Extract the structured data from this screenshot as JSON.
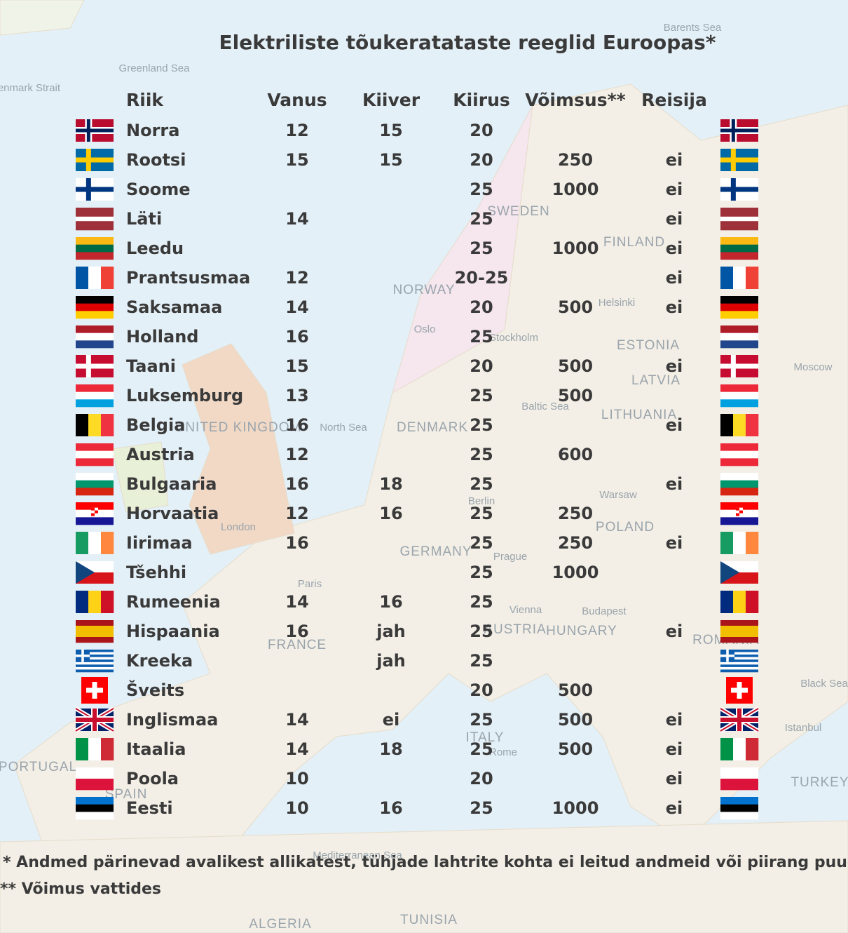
{
  "title": "Elektriliste tõukeratataste reeglid Euroopas*",
  "table": {
    "headers": [
      "Riik",
      "Vanus",
      "Kiiver",
      "Kiirus",
      "Võimsus**",
      "Reisija"
    ],
    "rows": [
      [
        "Norra",
        12,
        15,
        20,
        null,
        null
      ],
      [
        "Rootsi",
        15,
        15,
        20,
        250,
        "ei"
      ],
      [
        "Soome",
        null,
        null,
        25,
        1000,
        "ei"
      ],
      [
        "Läti",
        14,
        null,
        25,
        null,
        "ei"
      ],
      [
        "Leedu",
        null,
        null,
        25,
        1000,
        "ei"
      ],
      [
        "Prantsusmaa",
        12,
        null,
        "20-25",
        null,
        "ei"
      ],
      [
        "Saksamaa",
        14,
        null,
        20,
        500,
        "ei"
      ],
      [
        "Holland",
        16,
        null,
        25,
        null,
        null
      ],
      [
        "Taani",
        15,
        null,
        20,
        500,
        "ei"
      ],
      [
        "Luksemburg",
        13,
        null,
        25,
        500,
        null
      ],
      [
        "Belgia",
        16,
        null,
        25,
        null,
        "ei"
      ],
      [
        "Austria",
        12,
        null,
        25,
        600,
        null
      ],
      [
        "Bulgaaria",
        16,
        18,
        25,
        null,
        "ei"
      ],
      [
        "Horvaatia",
        12,
        16,
        25,
        250,
        null
      ],
      [
        "Iirimaa",
        16,
        null,
        25,
        250,
        "ei"
      ],
      [
        "Tšehhi",
        null,
        null,
        25,
        1000,
        null
      ],
      [
        "Rumeenia",
        14,
        16,
        25,
        null,
        null
      ],
      [
        "Hispaania",
        16,
        "jah",
        25,
        null,
        "ei"
      ],
      [
        "Kreeka",
        null,
        "jah",
        25,
        null,
        null
      ],
      [
        "Šveits",
        null,
        null,
        20,
        500,
        null
      ],
      [
        "Inglismaa",
        14,
        "ei",
        25,
        500,
        "ei"
      ],
      [
        "Itaalia",
        14,
        18,
        25,
        500,
        "ei"
      ],
      [
        "Poola",
        10,
        null,
        20,
        null,
        "ei"
      ],
      [
        "Eesti",
        10,
        16,
        25,
        1000,
        "ei"
      ]
    ]
  },
  "footnotes": [
    "* Andmed pärinevad avalikest allikatest, tühjade lahtrite kohta ei leitud andmeid või piirang puudub",
    "** Võimus vattides"
  ],
  "map": {
    "labels": [
      "Greenland Sea",
      "Denmark Strait",
      "Barents Sea",
      "NORWAY",
      "SWEDEN",
      "FINLAND",
      "ESTONIA",
      "LATVIA",
      "LITHUANIA",
      "DENMARK",
      "North Sea",
      "Baltic Sea",
      "UNITED KINGDOM",
      "POLAND",
      "GERMANY",
      "FRANCE",
      "HUNGARY",
      "AUSTRIA",
      "ROMANIA",
      "ITALY",
      "SPAIN",
      "PORTUGAL",
      "TURKEY",
      "Black Sea",
      "Mediterranean Sea",
      "ALGERIA",
      "TUNISIA",
      "Moscow",
      "Oslo",
      "Stockholm",
      "Helsinki",
      "Warsaw",
      "Berlin",
      "Paris",
      "London",
      "Prague",
      "Vienna",
      "Budapest",
      "Rome",
      "Istanbul"
    ]
  }
}
